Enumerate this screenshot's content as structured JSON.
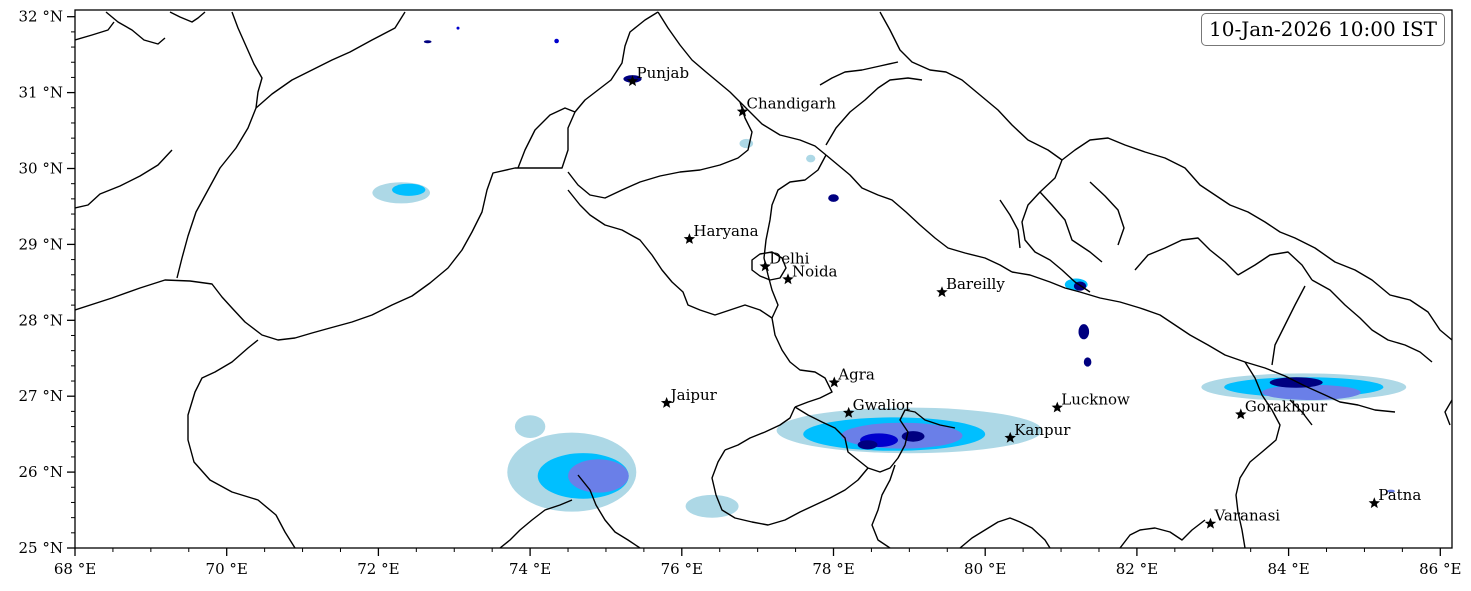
{
  "timestamp": "10-Jan-2026 10:00 IST",
  "map": {
    "lon_range": [
      68,
      86.2
    ],
    "lat_range": [
      25,
      32.1
    ],
    "lon_ticks": [
      {
        "value": 68,
        "label": "68 °E"
      },
      {
        "value": 70,
        "label": "70 °E"
      },
      {
        "value": 72,
        "label": "72 °E"
      },
      {
        "value": 74,
        "label": "74 °E"
      },
      {
        "value": 76,
        "label": "76 °E"
      },
      {
        "value": 78,
        "label": "78 °E"
      },
      {
        "value": 80,
        "label": "80 °E"
      },
      {
        "value": 82,
        "label": "82 °E"
      },
      {
        "value": 84,
        "label": "84 °E"
      },
      {
        "value": 86,
        "label": "86 °E"
      }
    ],
    "lat_ticks": [
      {
        "value": 25,
        "label": "25 °N"
      },
      {
        "value": 26,
        "label": "26 °N"
      },
      {
        "value": 27,
        "label": "27 °N"
      },
      {
        "value": 28,
        "label": "28 °N"
      },
      {
        "value": 29,
        "label": "29 °N"
      },
      {
        "value": 30,
        "label": "30 °N"
      },
      {
        "value": 31,
        "label": "31 °N"
      },
      {
        "value": 32,
        "label": "32 °N"
      }
    ],
    "fill_colors": [
      "#add8e6",
      "#00bfff",
      "#6a7fe8",
      "#0000cd",
      "#000080"
    ]
  },
  "cities": [
    {
      "name": "Punjab",
      "lon": 75.35,
      "lat": 31.15
    },
    {
      "name": "Chandigarh",
      "lon": 76.8,
      "lat": 30.75
    },
    {
      "name": "Haryana",
      "lon": 76.1,
      "lat": 29.07
    },
    {
      "name": "Delhi",
      "lon": 77.1,
      "lat": 28.71
    },
    {
      "name": "Noida",
      "lon": 77.4,
      "lat": 28.54
    },
    {
      "name": "Bareilly",
      "lon": 79.43,
      "lat": 28.37
    },
    {
      "name": "Jaipur",
      "lon": 75.8,
      "lat": 26.91
    },
    {
      "name": "Agra",
      "lon": 78.01,
      "lat": 27.18
    },
    {
      "name": "Gwalior",
      "lon": 78.2,
      "lat": 26.78
    },
    {
      "name": "Lucknow",
      "lon": 80.95,
      "lat": 26.85
    },
    {
      "name": "Kanpur",
      "lon": 80.33,
      "lat": 26.45
    },
    {
      "name": "Gorakhpur",
      "lon": 83.37,
      "lat": 26.76
    },
    {
      "name": "Varanasi",
      "lon": 82.97,
      "lat": 25.32
    },
    {
      "name": "Patna",
      "lon": 85.13,
      "lat": 25.59
    }
  ],
  "precip_cells": [
    {
      "lon": 74.55,
      "lat": 26.0,
      "rx": 0.85,
      "ry": 0.52,
      "level": 0
    },
    {
      "lon": 74.0,
      "lat": 26.6,
      "rx": 0.2,
      "ry": 0.15,
      "level": 0
    },
    {
      "lon": 76.4,
      "lat": 25.55,
      "rx": 0.35,
      "ry": 0.15,
      "level": 0
    },
    {
      "lon": 74.7,
      "lat": 25.95,
      "rx": 0.6,
      "ry": 0.3,
      "level": 1
    },
    {
      "lon": 74.9,
      "lat": 25.95,
      "rx": 0.4,
      "ry": 0.22,
      "level": 2
    },
    {
      "lon": 79.0,
      "lat": 26.55,
      "rx": 1.75,
      "ry": 0.3,
      "level": 0
    },
    {
      "lon": 78.8,
      "lat": 26.5,
      "rx": 1.2,
      "ry": 0.22,
      "level": 1
    },
    {
      "lon": 78.9,
      "lat": 26.48,
      "rx": 0.8,
      "ry": 0.17,
      "level": 2
    },
    {
      "lon": 78.6,
      "lat": 26.42,
      "rx": 0.25,
      "ry": 0.09,
      "level": 3
    },
    {
      "lon": 79.05,
      "lat": 26.47,
      "rx": 0.15,
      "ry": 0.07,
      "level": 4
    },
    {
      "lon": 78.45,
      "lat": 26.36,
      "rx": 0.13,
      "ry": 0.06,
      "level": 4
    },
    {
      "lon": 72.3,
      "lat": 29.68,
      "rx": 0.38,
      "ry": 0.14,
      "level": 0
    },
    {
      "lon": 72.4,
      "lat": 29.72,
      "rx": 0.22,
      "ry": 0.08,
      "level": 1
    },
    {
      "lon": 84.2,
      "lat": 27.12,
      "rx": 1.35,
      "ry": 0.18,
      "level": 0
    },
    {
      "lon": 84.2,
      "lat": 27.12,
      "rx": 1.05,
      "ry": 0.13,
      "level": 1
    },
    {
      "lon": 84.3,
      "lat": 27.05,
      "rx": 0.65,
      "ry": 0.1,
      "level": 2
    },
    {
      "lon": 84.1,
      "lat": 27.18,
      "rx": 0.35,
      "ry": 0.07,
      "level": 4
    },
    {
      "lon": 78.0,
      "lat": 29.61,
      "rx": 0.07,
      "ry": 0.05,
      "level": 4
    },
    {
      "lon": 75.35,
      "lat": 31.18,
      "rx": 0.12,
      "ry": 0.05,
      "level": 4
    },
    {
      "lon": 81.2,
      "lat": 28.47,
      "rx": 0.15,
      "ry": 0.08,
      "level": 1
    },
    {
      "lon": 81.25,
      "lat": 28.45,
      "rx": 0.08,
      "ry": 0.06,
      "level": 4
    },
    {
      "lon": 81.3,
      "lat": 27.85,
      "rx": 0.07,
      "ry": 0.1,
      "level": 4
    },
    {
      "lon": 81.35,
      "lat": 27.45,
      "rx": 0.05,
      "ry": 0.06,
      "level": 4
    },
    {
      "lon": 76.85,
      "lat": 30.33,
      "rx": 0.09,
      "ry": 0.06,
      "level": 0
    },
    {
      "lon": 77.7,
      "lat": 30.13,
      "rx": 0.06,
      "ry": 0.05,
      "level": 0
    },
    {
      "lon": 72.65,
      "lat": 31.67,
      "rx": 0.05,
      "ry": 0.02,
      "level": 4
    },
    {
      "lon": 74.35,
      "lat": 31.68,
      "rx": 0.03,
      "ry": 0.03,
      "level": 3
    },
    {
      "lon": 73.05,
      "lat": 31.85,
      "rx": 0.02,
      "ry": 0.02,
      "level": 3
    },
    {
      "lon": 85.35,
      "lat": 25.75,
      "rx": 0.05,
      "ry": 0.02,
      "level": 2
    }
  ]
}
